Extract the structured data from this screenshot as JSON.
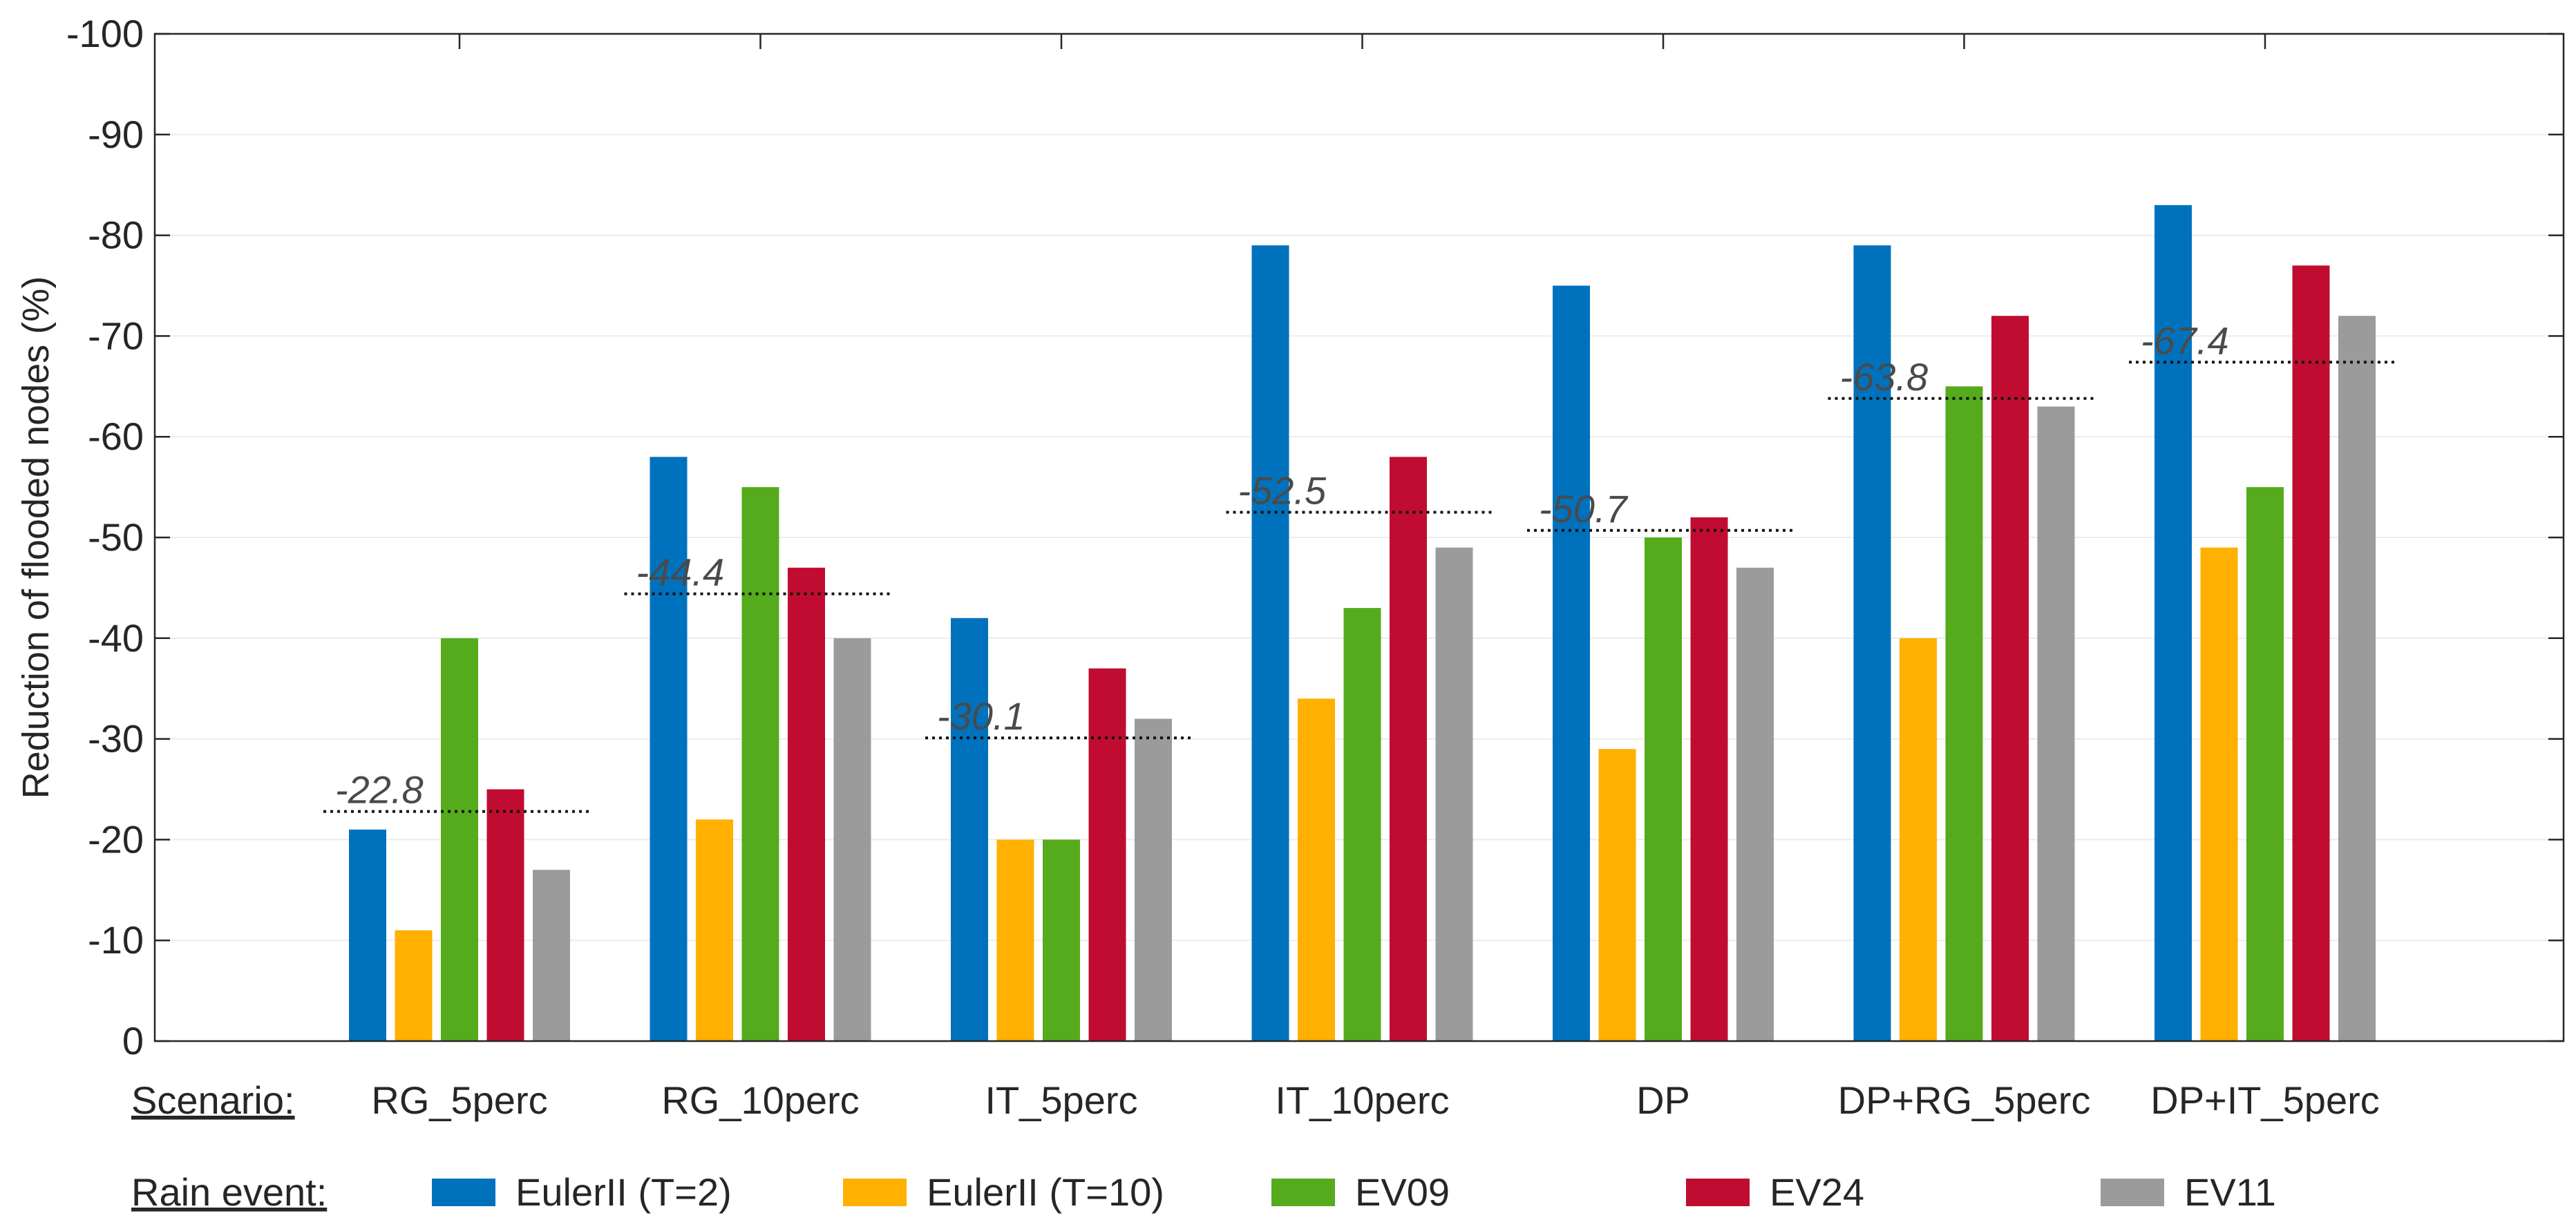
{
  "chart_data": {
    "type": "bar",
    "xlabel": "Scenario:",
    "ylabel": "Reduction of flooded nodes (%)",
    "ylim": [
      0,
      -100
    ],
    "yticks": [
      "0",
      "-10",
      "-20",
      "-30",
      "-40",
      "-50",
      "-60",
      "-70",
      "-80",
      "-90",
      "-100"
    ],
    "categories": [
      "RG_5perc",
      "RG_10perc",
      "IT_5perc",
      "IT_10perc",
      "DP",
      "DP+RG_5perc",
      "DP+IT_5perc"
    ],
    "legend_title": "Rain event:",
    "series": [
      {
        "name": "EulerII (T=2)",
        "color": "#0072bd",
        "values": [
          -21,
          -58,
          -42,
          -79,
          -75,
          -79,
          -83
        ]
      },
      {
        "name": "EulerII (T=10)",
        "color": "#ffb000",
        "values": [
          -11,
          -22,
          -20,
          -34,
          -29,
          -40,
          -49
        ]
      },
      {
        "name": "EV09",
        "color": "#55ab1c",
        "values": [
          -40,
          -55,
          -20,
          -43,
          -50,
          -65,
          -55
        ]
      },
      {
        "name": "EV24",
        "color": "#c00c30",
        "values": [
          -25,
          -47,
          -37,
          -58,
          -52,
          -72,
          -77
        ]
      },
      {
        "name": "EV11",
        "color": "#9b9b9b",
        "values": [
          -17,
          -40,
          -32,
          -49,
          -47,
          -63,
          -72
        ]
      }
    ],
    "means": [
      -22.8,
      -44.4,
      -30.1,
      -52.5,
      -50.7,
      -63.8,
      -67.4
    ],
    "mean_labels": [
      "-22.8",
      "-44.4",
      "-30.1",
      "-52.5",
      "-50.7",
      "-63.8",
      "-67.4"
    ]
  }
}
